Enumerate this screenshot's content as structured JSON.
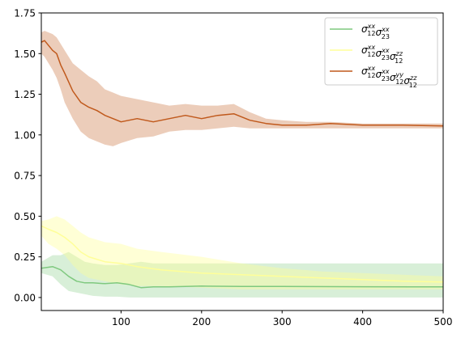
{
  "chart_data": {
    "type": "line",
    "title": "",
    "xlabel": "",
    "ylabel": "",
    "xlim": [
      1,
      500
    ],
    "ylim": [
      -0.08,
      1.75
    ],
    "x_ticks": [
      100,
      200,
      300,
      400,
      500
    ],
    "y_ticks": [
      0.0,
      0.25,
      0.5,
      0.75,
      1.0,
      1.25,
      1.5,
      1.75
    ],
    "x_tick_labels": [
      "100",
      "200",
      "300",
      "400",
      "500"
    ],
    "y_tick_labels": [
      "0.00",
      "0.25",
      "0.50",
      "0.75",
      "1.00",
      "1.25",
      "1.50",
      "1.75"
    ],
    "grid": false,
    "legend_position": "upper-right",
    "series": [
      {
        "name": "σ12xx σ23xx",
        "name_parts": [
          [
            "σ",
            "12",
            "xx"
          ],
          [
            "σ",
            "23",
            "xx"
          ]
        ],
        "color": "#7fc97f",
        "x": [
          1,
          15,
          25,
          35,
          45,
          55,
          65,
          80,
          95,
          110,
          125,
          140,
          160,
          200,
          250,
          300,
          400,
          500
        ],
        "mean": [
          0.18,
          0.19,
          0.17,
          0.13,
          0.1,
          0.09,
          0.09,
          0.085,
          0.09,
          0.08,
          0.06,
          0.065,
          0.065,
          0.07,
          0.068,
          0.068,
          0.066,
          0.065
        ],
        "lower": [
          0.15,
          0.13,
          0.08,
          0.04,
          0.03,
          0.02,
          0.01,
          0.005,
          0.005,
          0.0,
          0.0,
          0.0,
          0.0,
          0.0,
          0.0,
          0.0,
          0.0,
          0.0
        ],
        "upper": [
          0.22,
          0.26,
          0.26,
          0.28,
          0.25,
          0.22,
          0.21,
          0.2,
          0.2,
          0.21,
          0.22,
          0.21,
          0.21,
          0.21,
          0.21,
          0.21,
          0.21,
          0.21
        ]
      },
      {
        "name": "σ12xx σ23xx σ12zz",
        "name_parts": [
          [
            "σ",
            "12",
            "xx"
          ],
          [
            "σ",
            "23",
            "xx"
          ],
          [
            "σ",
            "12",
            "zz"
          ]
        ],
        "color": "#ffff99",
        "x": [
          1,
          10,
          20,
          30,
          40,
          50,
          60,
          80,
          100,
          120,
          150,
          200,
          250,
          300,
          350,
          400,
          450,
          500
        ],
        "mean": [
          0.44,
          0.42,
          0.4,
          0.37,
          0.33,
          0.28,
          0.25,
          0.22,
          0.21,
          0.19,
          0.17,
          0.15,
          0.14,
          0.13,
          0.12,
          0.11,
          0.1,
          0.095
        ],
        "lower": [
          0.38,
          0.33,
          0.3,
          0.26,
          0.2,
          0.15,
          0.12,
          0.1,
          0.08,
          0.07,
          0.07,
          0.06,
          0.05,
          0.05,
          0.05,
          0.05,
          0.05,
          0.05
        ],
        "upper": [
          0.47,
          0.48,
          0.5,
          0.48,
          0.44,
          0.4,
          0.37,
          0.34,
          0.33,
          0.3,
          0.28,
          0.25,
          0.21,
          0.18,
          0.16,
          0.15,
          0.14,
          0.13
        ]
      },
      {
        "name": "σ12xx σ23xx σ12yy σ12zz",
        "name_parts": [
          [
            "σ",
            "12",
            "xx"
          ],
          [
            "σ",
            "23",
            "xx"
          ],
          [
            "σ",
            "12",
            "yy"
          ],
          [
            "σ",
            "12",
            "zz"
          ]
        ],
        "color": "#c0591c",
        "x": [
          1,
          5,
          10,
          15,
          20,
          25,
          30,
          40,
          50,
          60,
          70,
          80,
          90,
          100,
          120,
          140,
          160,
          180,
          200,
          220,
          240,
          260,
          280,
          300,
          330,
          360,
          400,
          450,
          500
        ],
        "mean": [
          1.57,
          1.58,
          1.55,
          1.52,
          1.5,
          1.43,
          1.38,
          1.27,
          1.2,
          1.17,
          1.15,
          1.12,
          1.1,
          1.08,
          1.1,
          1.08,
          1.1,
          1.12,
          1.1,
          1.12,
          1.13,
          1.09,
          1.07,
          1.06,
          1.06,
          1.07,
          1.06,
          1.06,
          1.055
        ],
        "lower": [
          1.5,
          1.48,
          1.44,
          1.4,
          1.35,
          1.28,
          1.2,
          1.1,
          1.02,
          0.98,
          0.96,
          0.94,
          0.93,
          0.95,
          0.98,
          0.99,
          1.02,
          1.03,
          1.03,
          1.04,
          1.05,
          1.04,
          1.04,
          1.04,
          1.04,
          1.04,
          1.04,
          1.04,
          1.04
        ],
        "upper": [
          1.63,
          1.64,
          1.63,
          1.62,
          1.6,
          1.56,
          1.52,
          1.44,
          1.4,
          1.36,
          1.33,
          1.28,
          1.26,
          1.24,
          1.22,
          1.2,
          1.18,
          1.19,
          1.18,
          1.18,
          1.19,
          1.14,
          1.1,
          1.09,
          1.08,
          1.08,
          1.07,
          1.07,
          1.07
        ]
      }
    ]
  }
}
